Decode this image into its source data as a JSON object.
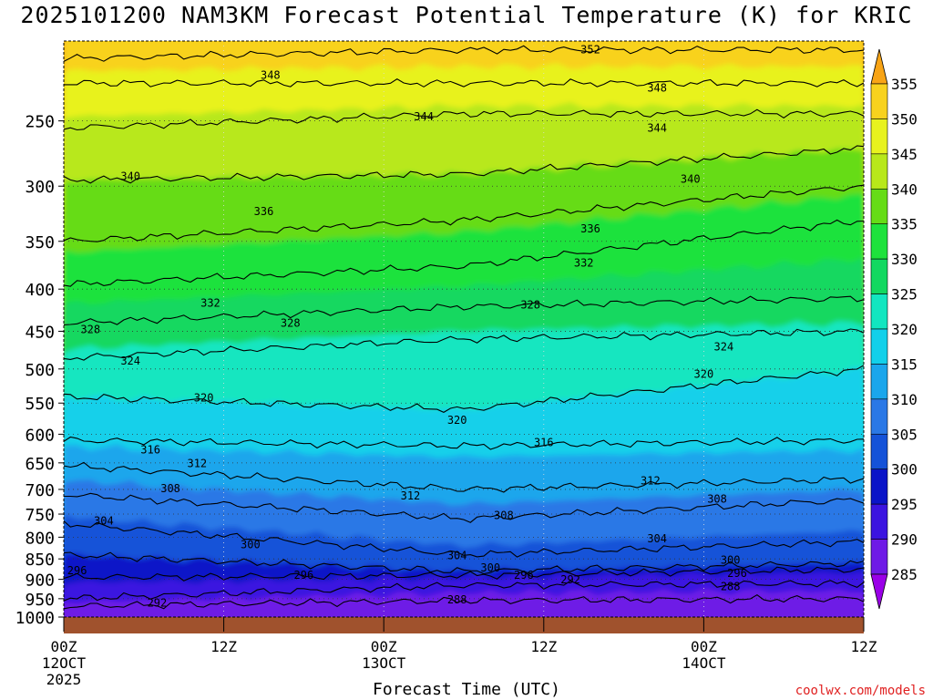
{
  "title": "2025101200 NAM3KM Forecast Potential Temperature (K) for KRIC",
  "credit": "coolwx.com/models",
  "chart_data": {
    "type": "contour",
    "variable": "Potential Temperature (K)",
    "xlabel": "Forecast Time (UTC)",
    "ylabel": "",
    "x_ticks": [
      {
        "hours": 0,
        "lines": [
          "00Z",
          "12OCT",
          "2025"
        ]
      },
      {
        "hours": 12,
        "lines": [
          "12Z"
        ]
      },
      {
        "hours": 24,
        "lines": [
          "00Z",
          "13OCT"
        ]
      },
      {
        "hours": 36,
        "lines": [
          "12Z"
        ]
      },
      {
        "hours": 48,
        "lines": [
          "00Z",
          "14OCT"
        ]
      },
      {
        "hours": 60,
        "lines": [
          "12Z"
        ]
      }
    ],
    "xlim": [
      0,
      60
    ],
    "y_ticks": [
      250,
      300,
      350,
      400,
      450,
      500,
      550,
      600,
      650,
      700,
      750,
      800,
      850,
      900,
      950,
      1000
    ],
    "ylim": [
      200,
      1000
    ],
    "y_scale": "log (pressure, hPa)",
    "colorbar": {
      "levels": [
        285,
        290,
        295,
        300,
        305,
        310,
        315,
        320,
        325,
        330,
        335,
        340,
        345,
        350,
        355
      ],
      "colors": [
        "#9a00e8",
        "#6e1ae6",
        "#3b14e0",
        "#0a14c8",
        "#1452d8",
        "#2a78e6",
        "#1aa6ec",
        "#12d0ea",
        "#12e6c0",
        "#12d860",
        "#1ee23c",
        "#66dc16",
        "#b8e81a",
        "#e8f21e",
        "#f8d21e",
        "#f8a416"
      ]
    },
    "isentropes": [
      {
        "theta": 288,
        "p_start": 970,
        "p_mid": 955,
        "p_end": 950
      },
      {
        "theta": 292,
        "p_start": 950,
        "p_mid": 915,
        "p_end": 910
      },
      {
        "theta": 296,
        "p_start": 895,
        "p_mid": 890,
        "p_end": 875
      },
      {
        "theta": 300,
        "p_start": 840,
        "p_mid": 880,
        "p_end": 860
      },
      {
        "theta": 304,
        "p_start": 770,
        "p_mid": 840,
        "p_end": 810
      },
      {
        "theta": 308,
        "p_start": 710,
        "p_mid": 760,
        "p_end": 720
      },
      {
        "theta": 312,
        "p_start": 655,
        "p_mid": 700,
        "p_end": 680
      },
      {
        "theta": 316,
        "p_start": 610,
        "p_mid": 620,
        "p_end": 610
      },
      {
        "theta": 320,
        "p_start": 540,
        "p_mid": 560,
        "p_end": 500
      },
      {
        "theta": 324,
        "p_start": 485,
        "p_mid": 460,
        "p_end": 450
      },
      {
        "theta": 328,
        "p_start": 440,
        "p_mid": 420,
        "p_end": 410
      },
      {
        "theta": 332,
        "p_start": 395,
        "p_mid": 375,
        "p_end": 330
      },
      {
        "theta": 336,
        "p_start": 350,
        "p_mid": 330,
        "p_end": 300
      },
      {
        "theta": 340,
        "p_start": 295,
        "p_mid": 290,
        "p_end": 270
      },
      {
        "theta": 344,
        "p_start": 255,
        "p_mid": 245,
        "p_end": 245
      },
      {
        "theta": 348,
        "p_start": 225,
        "p_mid": 225,
        "p_end": 225
      },
      {
        "theta": 352,
        "p_start": 210,
        "p_mid": 205,
        "p_end": 205
      }
    ],
    "contour_labels": [
      {
        "text": "352",
        "h": 39.5,
        "p": 205
      },
      {
        "text": "348",
        "h": 15.5,
        "p": 220
      },
      {
        "text": "348",
        "h": 44.5,
        "p": 228
      },
      {
        "text": "344",
        "h": 27,
        "p": 247
      },
      {
        "text": "344",
        "h": 44.5,
        "p": 255
      },
      {
        "text": "340",
        "h": 5,
        "p": 292
      },
      {
        "text": "340",
        "h": 47,
        "p": 294
      },
      {
        "text": "336",
        "h": 15,
        "p": 322
      },
      {
        "text": "336",
        "h": 39.5,
        "p": 338
      },
      {
        "text": "332",
        "h": 11,
        "p": 416
      },
      {
        "text": "332",
        "h": 39,
        "p": 372
      },
      {
        "text": "328",
        "h": 2,
        "p": 448
      },
      {
        "text": "328",
        "h": 17,
        "p": 440
      },
      {
        "text": "328",
        "h": 35,
        "p": 418
      },
      {
        "text": "324",
        "h": 5,
        "p": 489
      },
      {
        "text": "324",
        "h": 49.5,
        "p": 470
      },
      {
        "text": "320",
        "h": 10.5,
        "p": 542
      },
      {
        "text": "320",
        "h": 48,
        "p": 507
      },
      {
        "text": "320",
        "h": 29.5,
        "p": 577
      },
      {
        "text": "316",
        "h": 6.5,
        "p": 627
      },
      {
        "text": "316",
        "h": 36,
        "p": 614
      },
      {
        "text": "312",
        "h": 10,
        "p": 651
      },
      {
        "text": "312",
        "h": 26,
        "p": 713
      },
      {
        "text": "312",
        "h": 44,
        "p": 683
      },
      {
        "text": "308",
        "h": 8,
        "p": 698
      },
      {
        "text": "308",
        "h": 33,
        "p": 753
      },
      {
        "text": "308",
        "h": 49,
        "p": 719
      },
      {
        "text": "304",
        "h": 3,
        "p": 764
      },
      {
        "text": "304",
        "h": 29.5,
        "p": 842
      },
      {
        "text": "304",
        "h": 44.5,
        "p": 803
      },
      {
        "text": "300",
        "h": 14,
        "p": 817
      },
      {
        "text": "300",
        "h": 32,
        "p": 871
      },
      {
        "text": "300",
        "h": 50,
        "p": 853
      },
      {
        "text": "296",
        "h": 1,
        "p": 878
      },
      {
        "text": "296",
        "h": 18,
        "p": 890
      },
      {
        "text": "296",
        "h": 34.5,
        "p": 890
      },
      {
        "text": "296",
        "h": 50.5,
        "p": 885
      },
      {
        "text": "292",
        "h": 7,
        "p": 961
      },
      {
        "text": "292",
        "h": 38,
        "p": 901
      },
      {
        "text": "288",
        "h": 29.5,
        "p": 953
      },
      {
        "text": "288",
        "h": 50,
        "p": 918
      }
    ],
    "terrain": {
      "surface_p": 1000
    }
  }
}
